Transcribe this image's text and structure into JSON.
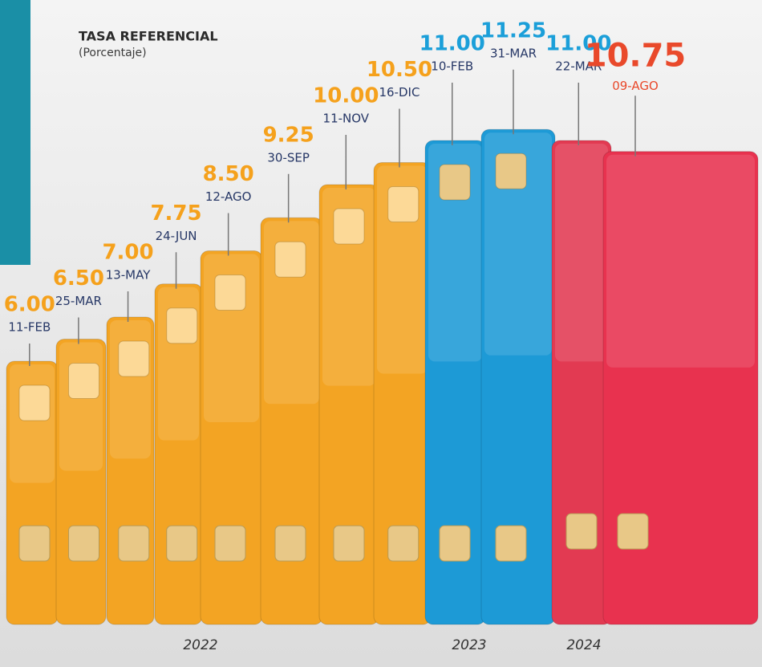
{
  "chart_data": {
    "type": "bar",
    "title": "TASA REFERENCIAL",
    "subtitle": "(Porcentaje)",
    "categories": [
      "11-FEB",
      "25-MAR",
      "13-MAY",
      "24-JUN",
      "12-AGO",
      "30-SEP",
      "11-NOV",
      "16-DIC",
      "10-FEB",
      "31-MAR",
      "22-MAR",
      "09-AGO"
    ],
    "values": [
      6,
      6.5,
      7,
      7.75,
      8.5,
      9.25,
      10,
      10.5,
      11,
      11.25,
      11,
      10.75
    ],
    "value_labels": [
      "6.00",
      "6.50",
      "7.00",
      "7.75",
      "8.50",
      "9.25",
      "10.00",
      "10.50",
      "11.00",
      "11.25",
      "11.00",
      "10.75"
    ],
    "colors": [
      "#f3a423",
      "#f3a423",
      "#f3a423",
      "#f3a423",
      "#f3a423",
      "#f3a423",
      "#f3a423",
      "#f3a423",
      "#1d9ad6",
      "#1d9ad6",
      "#e23a52",
      "#e8324f"
    ],
    "label_colors": [
      "#f5a11c",
      "#f5a11c",
      "#f5a11c",
      "#f5a11c",
      "#f5a11c",
      "#f5a11c",
      "#f5a11c",
      "#f5a11c",
      "#1b9fd9",
      "#1b9fd9",
      "#1b9fd9",
      "#e9492b"
    ],
    "annotations": [
      "2022",
      "2023",
      "2024"
    ]
  }
}
